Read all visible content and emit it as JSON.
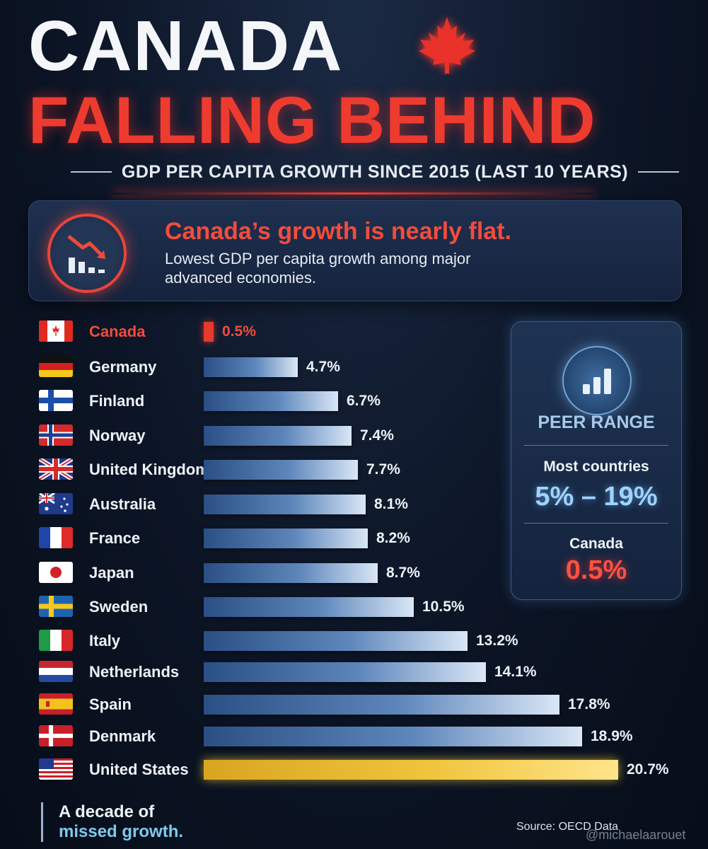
{
  "header": {
    "title_line1": "CANADA",
    "title_line2": "FALLING BEHIND",
    "subtitle": "GDP PER CAPITA GROWTH SINCE 2015 (LAST 10 YEARS)"
  },
  "callout": {
    "headline": "Canada’s growth is nearly flat.",
    "body": "Lowest GDP per capita growth among major advanced economies."
  },
  "colors": {
    "accent_red": "#ee3b2f",
    "bar_blue": "#5d86bb",
    "usa_gold": "#f0c43c",
    "peer_blue": "#9dd3ff"
  },
  "chart_data": {
    "type": "bar",
    "orientation": "horizontal",
    "title": "GDP PER CAPITA GROWTH SINCE 2015 (LAST 10 YEARS)",
    "categories": [
      "Canada",
      "Germany",
      "Finland",
      "Norway",
      "United Kingdom",
      "Australia",
      "France",
      "Japan",
      "Sweden",
      "Italy",
      "Netherlands",
      "Spain",
      "Denmark",
      "United States"
    ],
    "values": [
      0.5,
      4.7,
      6.7,
      7.4,
      7.7,
      8.1,
      8.2,
      8.7,
      10.5,
      13.2,
      14.1,
      17.8,
      18.9,
      20.7
    ],
    "value_labels": [
      "0.5%",
      "4.7%",
      "6.7%",
      "7.4%",
      "7.7%",
      "8.1%",
      "8.2%",
      "8.7%",
      "10.5%",
      "13.2%",
      "14.1%",
      "17.8%",
      "18.9%",
      "20.7%"
    ],
    "unit": "%",
    "xlim": [
      0,
      21
    ],
    "grid": false
  },
  "peer_panel": {
    "title": "PEER RANGE",
    "most_label": "Most countries",
    "range": "5% – 19%",
    "canada_label": "Canada",
    "canada_value": "0.5%",
    "icon": "bar-chart-icon"
  },
  "footer": {
    "tagline_line1": "A decade of",
    "tagline_line2": "missed growth.",
    "source": "Source: OECD Data",
    "credit": "@michaelaarouet"
  }
}
